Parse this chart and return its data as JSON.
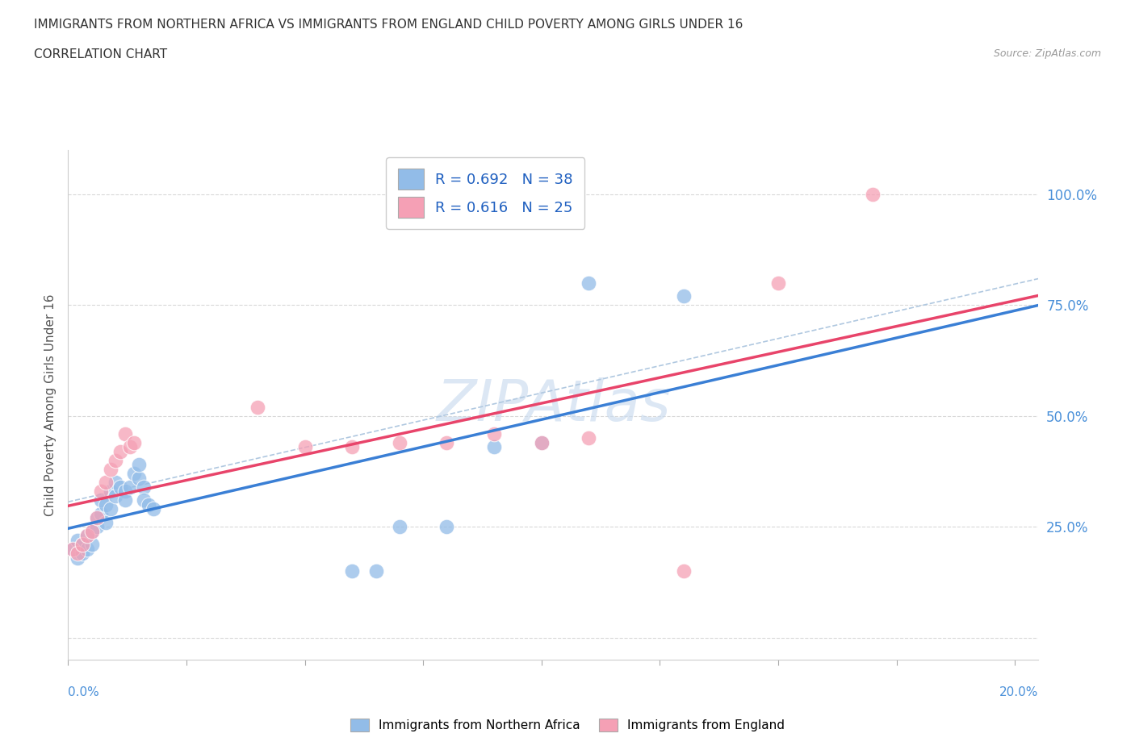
{
  "title1": "IMMIGRANTS FROM NORTHERN AFRICA VS IMMIGRANTS FROM ENGLAND CHILD POVERTY AMONG GIRLS UNDER 16",
  "title2": "CORRELATION CHART",
  "source": "Source: ZipAtlas.com",
  "ylabel": "Child Poverty Among Girls Under 16",
  "watermark": "ZIPAtlas",
  "blue_R": "0.692",
  "blue_N": "38",
  "pink_R": "0.616",
  "pink_N": "25",
  "blue_color": "#92bce8",
  "pink_color": "#f5a0b5",
  "blue_line_color": "#3a7fd5",
  "pink_line_color": "#e8446a",
  "dash_line_color": "#b0c8e0",
  "blue_scatter": [
    [
      0.001,
      0.2
    ],
    [
      0.002,
      0.18
    ],
    [
      0.002,
      0.22
    ],
    [
      0.003,
      0.19
    ],
    [
      0.003,
      0.21
    ],
    [
      0.004,
      0.2
    ],
    [
      0.004,
      0.23
    ],
    [
      0.005,
      0.21
    ],
    [
      0.005,
      0.24
    ],
    [
      0.006,
      0.25
    ],
    [
      0.006,
      0.27
    ],
    [
      0.007,
      0.28
    ],
    [
      0.007,
      0.31
    ],
    [
      0.008,
      0.26
    ],
    [
      0.008,
      0.3
    ],
    [
      0.009,
      0.33
    ],
    [
      0.009,
      0.29
    ],
    [
      0.01,
      0.32
    ],
    [
      0.01,
      0.35
    ],
    [
      0.011,
      0.34
    ],
    [
      0.012,
      0.33
    ],
    [
      0.012,
      0.31
    ],
    [
      0.013,
      0.34
    ],
    [
      0.014,
      0.37
    ],
    [
      0.015,
      0.36
    ],
    [
      0.015,
      0.39
    ],
    [
      0.016,
      0.34
    ],
    [
      0.016,
      0.31
    ],
    [
      0.017,
      0.3
    ],
    [
      0.018,
      0.29
    ],
    [
      0.06,
      0.15
    ],
    [
      0.065,
      0.15
    ],
    [
      0.07,
      0.25
    ],
    [
      0.08,
      0.25
    ],
    [
      0.09,
      0.43
    ],
    [
      0.1,
      0.44
    ],
    [
      0.11,
      0.8
    ],
    [
      0.13,
      0.77
    ]
  ],
  "pink_scatter": [
    [
      0.001,
      0.2
    ],
    [
      0.002,
      0.19
    ],
    [
      0.003,
      0.21
    ],
    [
      0.004,
      0.23
    ],
    [
      0.005,
      0.24
    ],
    [
      0.006,
      0.27
    ],
    [
      0.007,
      0.33
    ],
    [
      0.008,
      0.35
    ],
    [
      0.009,
      0.38
    ],
    [
      0.01,
      0.4
    ],
    [
      0.011,
      0.42
    ],
    [
      0.012,
      0.46
    ],
    [
      0.013,
      0.43
    ],
    [
      0.014,
      0.44
    ],
    [
      0.04,
      0.52
    ],
    [
      0.05,
      0.43
    ],
    [
      0.06,
      0.43
    ],
    [
      0.07,
      0.44
    ],
    [
      0.08,
      0.44
    ],
    [
      0.09,
      0.46
    ],
    [
      0.1,
      0.44
    ],
    [
      0.11,
      0.45
    ],
    [
      0.13,
      0.15
    ],
    [
      0.15,
      0.8
    ],
    [
      0.17,
      1.0
    ]
  ],
  "xlim": [
    0.0,
    0.205
  ],
  "ylim": [
    -0.05,
    1.1
  ],
  "y_ticks": [
    0.0,
    0.25,
    0.5,
    0.75,
    1.0
  ],
  "x_ticks": [
    0.0,
    0.025,
    0.05,
    0.075,
    0.1,
    0.125,
    0.15,
    0.175,
    0.2
  ]
}
